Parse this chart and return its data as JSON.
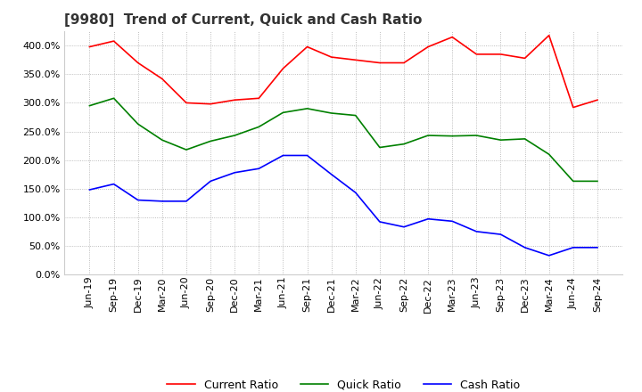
{
  "title": "[9980]  Trend of Current, Quick and Cash Ratio",
  "ylim": [
    0,
    425
  ],
  "yticks": [
    0,
    50,
    100,
    150,
    200,
    250,
    300,
    350,
    400
  ],
  "background_color": "#ffffff",
  "plot_bg_color": "#ffffff",
  "grid_color": "#aaaaaa",
  "x_labels": [
    "Jun-19",
    "Sep-19",
    "Dec-19",
    "Mar-20",
    "Jun-20",
    "Sep-20",
    "Dec-20",
    "Mar-21",
    "Jun-21",
    "Sep-21",
    "Dec-21",
    "Mar-22",
    "Jun-22",
    "Sep-22",
    "Dec-22",
    "Mar-23",
    "Jun-23",
    "Sep-23",
    "Dec-23",
    "Mar-24",
    "Jun-24",
    "Sep-24"
  ],
  "current_ratio": [
    398,
    408,
    370,
    342,
    300,
    298,
    305,
    308,
    360,
    398,
    380,
    375,
    370,
    370,
    398,
    415,
    385,
    385,
    378,
    418,
    292,
    305
  ],
  "quick_ratio": [
    295,
    308,
    263,
    235,
    218,
    233,
    243,
    258,
    283,
    290,
    282,
    278,
    222,
    228,
    243,
    242,
    243,
    235,
    237,
    210,
    163,
    163
  ],
  "cash_ratio": [
    148,
    158,
    130,
    128,
    128,
    163,
    178,
    185,
    208,
    208,
    175,
    143,
    92,
    83,
    97,
    93,
    75,
    70,
    47,
    33,
    47,
    47
  ],
  "current_color": "#ff0000",
  "quick_color": "#008000",
  "cash_color": "#0000ff",
  "legend_labels": [
    "Current Ratio",
    "Quick Ratio",
    "Cash Ratio"
  ],
  "title_fontsize": 11,
  "tick_fontsize": 8,
  "legend_fontsize": 9
}
